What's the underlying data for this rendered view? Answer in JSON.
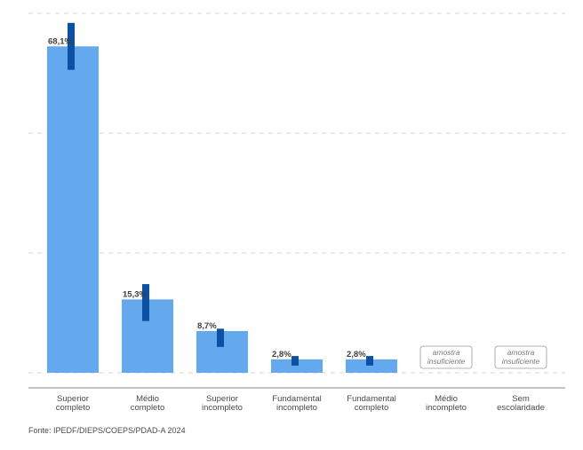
{
  "chart_data": {
    "type": "bar",
    "categories": [
      [
        "Superior",
        "completo"
      ],
      [
        "Médio",
        "completo"
      ],
      [
        "Superior",
        "incompleto"
      ],
      [
        "Fundamental",
        "incompleto"
      ],
      [
        "Fundamental",
        "completo"
      ],
      [
        "Médio",
        "incompleto"
      ],
      [
        "Sem",
        "escolaridade"
      ]
    ],
    "values": [
      68.1,
      15.3,
      8.7,
      2.8,
      2.8,
      null,
      null
    ],
    "value_labels": [
      "68,1%",
      "15,3%",
      "8,7%",
      "2,8%",
      "2,8%",
      "",
      ""
    ],
    "error_ranges": [
      [
        63.2,
        73.0
      ],
      [
        10.8,
        18.5
      ],
      [
        5.4,
        9.2
      ],
      [
        1.5,
        3.5
      ],
      [
        1.5,
        3.5
      ],
      null,
      null
    ],
    "insufficient_sample_label": [
      "amostra",
      "insuficiente"
    ],
    "ylim": [
      0,
      75
    ],
    "grid": "horizontal dashed",
    "colors": {
      "bar": "#64a8ee",
      "error_bar": "#0d4fa0",
      "grid": "#d6d6d6",
      "axis": "#8a8a8a"
    }
  },
  "source": "Fonte: IPEDF/DIEPS/COEPS/PDAD-A 2024"
}
